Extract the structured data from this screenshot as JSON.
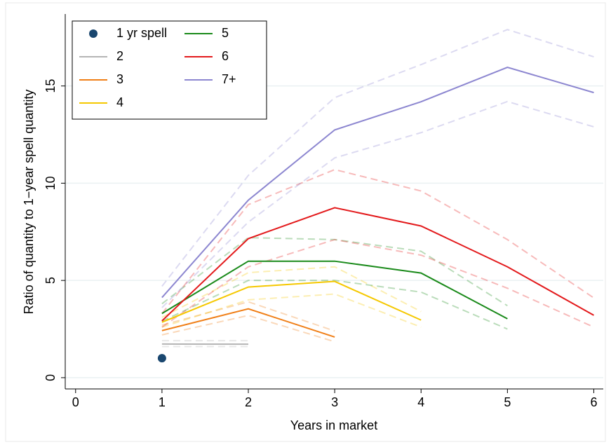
{
  "chart_data": {
    "type": "line",
    "x": [
      1,
      2,
      3,
      4,
      5,
      6
    ],
    "xlim": [
      -0.12,
      6.11
    ],
    "ylim": [
      -0.58,
      18.7
    ],
    "xticks": [
      0,
      1,
      2,
      3,
      4,
      5,
      6
    ],
    "yticks": [
      0,
      5,
      10,
      15
    ],
    "xlabel": "Years in market",
    "ylabel": "Ratio of quantity to 1−year spell quantity",
    "grid": true,
    "legend": "top-left",
    "legend_columns": 2,
    "series": [
      {
        "name": "1 yr spell",
        "color": "#1a476f",
        "style": "marker",
        "values": [
          1.0,
          null,
          null,
          null,
          null,
          null
        ]
      },
      {
        "name": "2",
        "color": "#b4b4b4",
        "values": [
          1.73,
          1.72,
          null,
          null,
          null,
          null
        ],
        "upper": [
          1.9,
          1.9,
          null,
          null,
          null,
          null
        ],
        "lower": [
          1.6,
          1.6,
          null,
          null,
          null,
          null
        ]
      },
      {
        "name": "3",
        "color": "#f07f17",
        "values": [
          2.42,
          3.54,
          2.09,
          null,
          null,
          null
        ],
        "upper": [
          2.7,
          3.9,
          2.4,
          null,
          null,
          null
        ],
        "lower": [
          2.2,
          3.2,
          1.85,
          null,
          null,
          null
        ]
      },
      {
        "name": "4",
        "color": "#f5c800",
        "values": [
          2.85,
          4.66,
          4.95,
          2.96,
          null,
          null
        ],
        "upper": [
          3.1,
          5.4,
          5.7,
          3.4,
          null,
          null
        ],
        "lower": [
          2.6,
          4.0,
          4.3,
          2.6,
          null,
          null
        ]
      },
      {
        "name": "5",
        "color": "#1a8a1a",
        "values": [
          3.3,
          5.99,
          5.99,
          5.38,
          3.03,
          null
        ],
        "upper": [
          3.8,
          7.2,
          7.1,
          6.5,
          3.7,
          null
        ],
        "lower": [
          2.9,
          5.0,
          5.0,
          4.4,
          2.5,
          null
        ]
      },
      {
        "name": "6",
        "color": "#e31a1c",
        "values": [
          2.92,
          7.15,
          8.74,
          7.8,
          5.7,
          3.21
        ],
        "upper": [
          3.3,
          8.9,
          10.7,
          9.6,
          7.1,
          4.1
        ],
        "lower": [
          2.6,
          5.7,
          7.1,
          6.3,
          4.6,
          2.6
        ]
      },
      {
        "name": "7+",
        "color": "#8c86d0",
        "values": [
          4.12,
          9.13,
          12.74,
          14.19,
          15.96,
          14.66
        ],
        "upper": [
          4.7,
          10.4,
          14.4,
          16.1,
          17.9,
          16.5
        ],
        "lower": [
          3.6,
          8.0,
          11.3,
          12.6,
          14.2,
          12.9
        ]
      }
    ]
  }
}
